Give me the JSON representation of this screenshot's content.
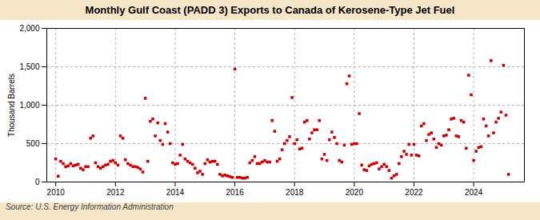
{
  "chart_data": {
    "type": "scatter",
    "title": "Monthly Gulf Coast (PADD 3) Exports to Canada of Kerosene-Type Jet Fuel",
    "ylabel": "Thousand Barrels",
    "source": "Source: U.S. Energy Information Administration",
    "color": "#cc0000",
    "marker": "square",
    "grid": true,
    "xlim": [
      2009.7,
      2025.7
    ],
    "xticks": [
      2010,
      2012,
      2014,
      2016,
      2018,
      2020,
      2022,
      2024
    ],
    "ylim": [
      0,
      2000
    ],
    "yticks": [
      0,
      500,
      {
        "value": 1000,
        "label": "1,000"
      },
      {
        "value": 1500,
        "label": "1,500"
      },
      {
        "value": 2000,
        "label": "2,000"
      }
    ],
    "x": [
      2010.0,
      2010.083,
      2010.167,
      2010.25,
      2010.333,
      2010.417,
      2010.5,
      2010.583,
      2010.667,
      2010.75,
      2010.833,
      2010.917,
      2011.0,
      2011.083,
      2011.167,
      2011.25,
      2011.333,
      2011.417,
      2011.5,
      2011.583,
      2011.667,
      2011.75,
      2011.833,
      2011.917,
      2012.0,
      2012.083,
      2012.167,
      2012.25,
      2012.333,
      2012.417,
      2012.5,
      2012.583,
      2012.667,
      2012.75,
      2012.833,
      2012.917,
      2013.0,
      2013.083,
      2013.167,
      2013.25,
      2013.333,
      2013.417,
      2013.5,
      2013.583,
      2013.667,
      2013.75,
      2013.833,
      2013.917,
      2014.0,
      2014.083,
      2014.167,
      2014.25,
      2014.333,
      2014.417,
      2014.5,
      2014.583,
      2014.667,
      2014.75,
      2014.833,
      2014.917,
      2015.0,
      2015.083,
      2015.167,
      2015.25,
      2015.333,
      2015.417,
      2015.5,
      2015.583,
      2015.667,
      2015.75,
      2015.833,
      2015.917,
      2016.0,
      2016.083,
      2016.167,
      2016.25,
      2016.333,
      2016.417,
      2016.5,
      2016.583,
      2016.667,
      2016.75,
      2016.833,
      2016.917,
      2017.0,
      2017.083,
      2017.167,
      2017.25,
      2017.333,
      2017.417,
      2017.5,
      2017.583,
      2017.667,
      2017.75,
      2017.833,
      2017.917,
      2018.0,
      2018.083,
      2018.167,
      2018.25,
      2018.333,
      2018.417,
      2018.5,
      2018.583,
      2018.667,
      2018.75,
      2018.833,
      2018.917,
      2019.0,
      2019.083,
      2019.167,
      2019.25,
      2019.333,
      2019.417,
      2019.5,
      2019.583,
      2019.667,
      2019.75,
      2019.833,
      2019.917,
      2020.0,
      2020.083,
      2020.167,
      2020.25,
      2020.333,
      2020.417,
      2020.5,
      2020.583,
      2020.667,
      2020.75,
      2020.833,
      2020.917,
      2021.0,
      2021.083,
      2021.167,
      2021.25,
      2021.333,
      2021.417,
      2021.5,
      2021.583,
      2021.667,
      2021.75,
      2021.833,
      2021.917,
      2022.0,
      2022.083,
      2022.167,
      2022.25,
      2022.333,
      2022.417,
      2022.5,
      2022.583,
      2022.667,
      2022.75,
      2022.833,
      2022.917,
      2023.0,
      2023.083,
      2023.167,
      2023.25,
      2023.333,
      2023.417,
      2023.5,
      2023.583,
      2023.667,
      2023.75,
      2023.833,
      2023.917,
      2024.0,
      2024.083,
      2024.167,
      2024.25,
      2024.333,
      2024.417,
      2024.5,
      2024.583,
      2024.667,
      2024.75,
      2024.833,
      2024.917,
      2025.0,
      2025.083,
      2025.167
    ],
    "values": [
      300,
      75,
      270,
      240,
      200,
      210,
      240,
      210,
      220,
      230,
      180,
      160,
      200,
      200,
      570,
      600,
      250,
      200,
      180,
      200,
      220,
      230,
      270,
      280,
      250,
      220,
      600,
      570,
      290,
      240,
      220,
      200,
      200,
      190,
      170,
      130,
      1090,
      270,
      790,
      820,
      600,
      770,
      540,
      490,
      760,
      650,
      500,
      250,
      230,
      240,
      350,
      490,
      300,
      270,
      250,
      230,
      180,
      120,
      140,
      100,
      240,
      290,
      260,
      270,
      270,
      230,
      100,
      80,
      90,
      80,
      70,
      60,
      1470,
      60,
      60,
      50,
      50,
      60,
      250,
      280,
      330,
      240,
      240,
      260,
      280,
      260,
      260,
      800,
      660,
      270,
      300,
      420,
      500,
      540,
      590,
      1100,
      500,
      550,
      430,
      440,
      780,
      800,
      560,
      640,
      680,
      680,
      800,
      300,
      360,
      280,
      550,
      650,
      580,
      500,
      280,
      260,
      480,
      1280,
      1380,
      490,
      500,
      500,
      890,
      220,
      160,
      150,
      210,
      230,
      240,
      250,
      170,
      200,
      230,
      200,
      150,
      50,
      80,
      100,
      240,
      330,
      400,
      360,
      490,
      350,
      490,
      350,
      340,
      730,
      760,
      540,
      620,
      640,
      560,
      450,
      500,
      480,
      600,
      610,
      680,
      820,
      830,
      600,
      590,
      800,
      780,
      440,
      1390,
      1135,
      280,
      400,
      450,
      460,
      820,
      730,
      600,
      1580,
      640,
      780,
      830,
      910,
      1520,
      870,
      100
    ]
  }
}
